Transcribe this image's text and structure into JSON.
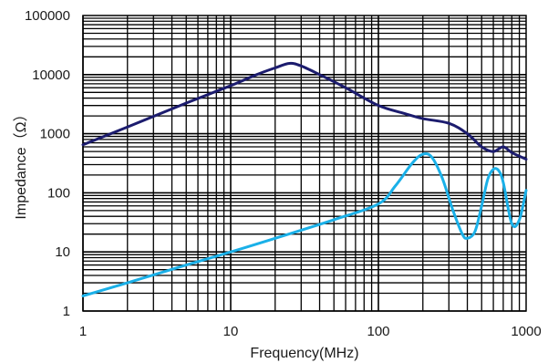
{
  "chart_data": {
    "type": "line",
    "xlabel": "Frequency(MHz)",
    "ylabel": "Impedance（Ω）",
    "x_scale": "log",
    "y_scale": "log",
    "xlim": [
      1,
      1000
    ],
    "ylim": [
      1,
      100000
    ],
    "grid": true,
    "x_ticks": [
      "1",
      "10",
      "100",
      "1000"
    ],
    "y_ticks": [
      "1",
      "10",
      "100",
      "1000",
      "10000",
      "100000"
    ],
    "series": [
      {
        "color": "#1c1c6e",
        "x": [
          1,
          2,
          5,
          10,
          15,
          20,
          25,
          30,
          40,
          60,
          100,
          150,
          200,
          300,
          400,
          500,
          600,
          700,
          800,
          1000
        ],
        "y": [
          650,
          1300,
          3300,
          6500,
          10000,
          13000,
          15500,
          14000,
          10000,
          6000,
          3000,
          2200,
          1800,
          1500,
          1000,
          600,
          500,
          600,
          480,
          370
        ]
      },
      {
        "color": "#1ab0e8",
        "x": [
          1,
          2,
          5,
          10,
          20,
          50,
          100,
          130,
          170,
          200,
          230,
          270,
          320,
          370,
          400,
          450,
          500,
          550,
          600,
          650,
          700,
          800,
          900,
          1000
        ],
        "y": [
          1.8,
          3,
          6,
          10,
          17,
          35,
          65,
          130,
          320,
          450,
          400,
          180,
          50,
          20,
          17,
          22,
          60,
          170,
          250,
          240,
          150,
          30,
          35,
          110
        ]
      }
    ]
  }
}
